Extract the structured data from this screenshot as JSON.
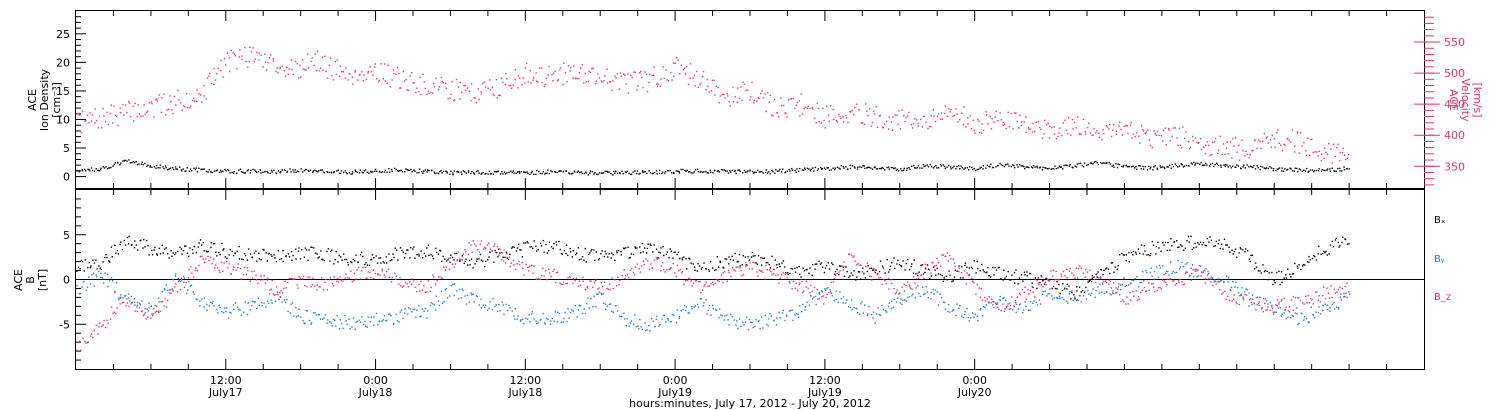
{
  "chart_data": [
    {
      "type": "scatter",
      "panel": "plasma",
      "ylabel_left": [
        "ACE",
        "Ion Density",
        "[cm⁻³]"
      ],
      "ylabel_right": [
        "ACE",
        "Velocity",
        "[km/s]"
      ],
      "ylim_left": [
        -2,
        29
      ],
      "yticks_left": [
        "0",
        "5",
        "10",
        "15",
        "20",
        "25"
      ],
      "ylim_right": [
        315,
        600
      ],
      "yticks_right": [
        "350",
        "400",
        "450",
        "500",
        "550"
      ],
      "series": [
        {
          "name": "Velocity",
          "axis": "right",
          "color": "#e8336a",
          "points": [
            [
              0,
              420
            ],
            [
              2,
              428
            ],
            [
              4,
              438
            ],
            [
              6,
              445
            ],
            [
              8,
              455
            ],
            [
              10,
              465
            ],
            [
              12,
              520
            ],
            [
              14,
              530
            ],
            [
              16,
              515
            ],
            [
              18,
              505
            ],
            [
              19,
              525
            ],
            [
              20,
              510
            ],
            [
              22,
              500
            ],
            [
              24,
              505
            ],
            [
              26,
              490
            ],
            [
              28,
              480
            ],
            [
              30,
              475
            ],
            [
              32,
              470
            ],
            [
              34,
              480
            ],
            [
              36,
              500
            ],
            [
              38,
              495
            ],
            [
              40,
              505
            ],
            [
              42,
              495
            ],
            [
              44,
              485
            ],
            [
              46,
              490
            ],
            [
              48,
              510
            ],
            [
              50,
              490
            ],
            [
              52,
              465
            ],
            [
              54,
              470
            ],
            [
              56,
              445
            ],
            [
              58,
              450
            ],
            [
              60,
              430
            ],
            [
              62,
              440
            ],
            [
              64,
              430
            ],
            [
              66,
              425
            ],
            [
              68,
              418
            ],
            [
              70,
              440
            ],
            [
              72,
              420
            ],
            [
              74,
              425
            ],
            [
              76,
              420
            ],
            [
              78,
              410
            ],
            [
              80,
              418
            ],
            [
              82,
              408
            ],
            [
              84,
              412
            ],
            [
              86,
              398
            ],
            [
              88,
              400
            ],
            [
              90,
              388
            ],
            [
              92,
              380
            ],
            [
              94,
              378
            ],
            [
              96,
              395
            ],
            [
              98,
              390
            ],
            [
              100,
              375
            ],
            [
              102,
              365
            ]
          ]
        },
        {
          "name": "Ion Density",
          "axis": "left",
          "color": "#000000",
          "points": [
            [
              0,
              1.2
            ],
            [
              2,
              1.5
            ],
            [
              4,
              2.8
            ],
            [
              6,
              2.0
            ],
            [
              8,
              1.5
            ],
            [
              10,
              1.2
            ],
            [
              12,
              1.0
            ],
            [
              14,
              1.1
            ],
            [
              16,
              1.0
            ],
            [
              18,
              1.2
            ],
            [
              20,
              1.0
            ],
            [
              22,
              0.9
            ],
            [
              24,
              1.1
            ],
            [
              26,
              1.3
            ],
            [
              28,
              1.0
            ],
            [
              30,
              0.8
            ],
            [
              32,
              0.8
            ],
            [
              34,
              0.9
            ],
            [
              36,
              0.8
            ],
            [
              38,
              0.9
            ],
            [
              40,
              0.8
            ],
            [
              42,
              0.7
            ],
            [
              44,
              0.8
            ],
            [
              46,
              0.9
            ],
            [
              48,
              1.0
            ],
            [
              50,
              1.1
            ],
            [
              52,
              1.0
            ],
            [
              54,
              0.9
            ],
            [
              56,
              1.0
            ],
            [
              58,
              1.3
            ],
            [
              60,
              1.5
            ],
            [
              62,
              1.8
            ],
            [
              64,
              1.6
            ],
            [
              66,
              1.4
            ],
            [
              68,
              2.0
            ],
            [
              70,
              1.8
            ],
            [
              72,
              1.5
            ],
            [
              74,
              2.2
            ],
            [
              76,
              1.8
            ],
            [
              78,
              1.6
            ],
            [
              80,
              2.0
            ],
            [
              82,
              2.5
            ],
            [
              84,
              1.8
            ],
            [
              86,
              1.6
            ],
            [
              88,
              2.0
            ],
            [
              90,
              2.4
            ],
            [
              92,
              2.0
            ],
            [
              94,
              1.8
            ],
            [
              96,
              1.5
            ],
            [
              98,
              1.2
            ],
            [
              100,
              1.3
            ],
            [
              102,
              1.5
            ]
          ]
        }
      ]
    },
    {
      "type": "scatter",
      "panel": "magnetic",
      "ylabel_left": [
        "ACE",
        "B",
        "[nT]"
      ],
      "ylim_left": [
        -10,
        10
      ],
      "yticks_left": [
        "-5",
        "0",
        "5"
      ],
      "zero_line": true,
      "legend": [
        "Bₓ",
        "Bᵧ",
        "B_z"
      ],
      "series": [
        {
          "name": "Bₓ",
          "color": "#000000",
          "points": [
            [
              0,
              1.5
            ],
            [
              2,
              2.0
            ],
            [
              4,
              4.5
            ],
            [
              6,
              3.5
            ],
            [
              8,
              3.0
            ],
            [
              10,
              3.8
            ],
            [
              12,
              3.2
            ],
            [
              14,
              2.8
            ],
            [
              16,
              2.5
            ],
            [
              18,
              3.0
            ],
            [
              20,
              2.8
            ],
            [
              22,
              2.2
            ],
            [
              24,
              2.5
            ],
            [
              26,
              3.0
            ],
            [
              28,
              3.2
            ],
            [
              30,
              2.6
            ],
            [
              32,
              2.0
            ],
            [
              34,
              2.8
            ],
            [
              36,
              3.5
            ],
            [
              38,
              3.8
            ],
            [
              40,
              3.0
            ],
            [
              42,
              2.5
            ],
            [
              44,
              3.2
            ],
            [
              46,
              3.6
            ],
            [
              48,
              2.5
            ],
            [
              50,
              1.5
            ],
            [
              52,
              2.0
            ],
            [
              54,
              2.5
            ],
            [
              56,
              1.8
            ],
            [
              58,
              1.0
            ],
            [
              60,
              1.5
            ],
            [
              62,
              0.5
            ],
            [
              64,
              1.2
            ],
            [
              66,
              2.0
            ],
            [
              68,
              1.0
            ],
            [
              70,
              0.5
            ],
            [
              72,
              1.5
            ],
            [
              74,
              0.8
            ],
            [
              76,
              0.2
            ],
            [
              78,
              -0.5
            ],
            [
              80,
              -1.5
            ],
            [
              82,
              0.5
            ],
            [
              84,
              2.5
            ],
            [
              86,
              3.5
            ],
            [
              88,
              4.0
            ],
            [
              90,
              4.2
            ],
            [
              92,
              3.8
            ],
            [
              94,
              2.5
            ],
            [
              96,
              0.0
            ],
            [
              98,
              1.5
            ],
            [
              100,
              3.5
            ],
            [
              102,
              4.5
            ]
          ]
        },
        {
          "name": "Bᵧ",
          "color": "#1a7fd6",
          "points": [
            [
              0,
              -1.0
            ],
            [
              2,
              0.5
            ],
            [
              4,
              -2.0
            ],
            [
              6,
              -3.5
            ],
            [
              8,
              0.5
            ],
            [
              10,
              -2.5
            ],
            [
              12,
              -3.5
            ],
            [
              14,
              -3.0
            ],
            [
              16,
              -2.0
            ],
            [
              18,
              -4.0
            ],
            [
              20,
              -4.5
            ],
            [
              22,
              -4.8
            ],
            [
              24,
              -4.5
            ],
            [
              26,
              -4.0
            ],
            [
              28,
              -3.5
            ],
            [
              30,
              -1.0
            ],
            [
              32,
              -2.5
            ],
            [
              34,
              -3.0
            ],
            [
              36,
              -4.2
            ],
            [
              38,
              -4.5
            ],
            [
              40,
              -3.5
            ],
            [
              42,
              -2.0
            ],
            [
              44,
              -4.5
            ],
            [
              46,
              -5.0
            ],
            [
              48,
              -4.0
            ],
            [
              50,
              -2.5
            ],
            [
              52,
              -4.5
            ],
            [
              54,
              -5.0
            ],
            [
              56,
              -4.2
            ],
            [
              58,
              -3.5
            ],
            [
              60,
              -1.0
            ],
            [
              62,
              -2.5
            ],
            [
              64,
              -4.0
            ],
            [
              66,
              -2.0
            ],
            [
              68,
              -1.0
            ],
            [
              70,
              -3.0
            ],
            [
              72,
              -4.0
            ],
            [
              74,
              -2.5
            ],
            [
              76,
              -3.0
            ],
            [
              78,
              -1.5
            ],
            [
              80,
              -2.0
            ],
            [
              82,
              -1.0
            ],
            [
              84,
              -0.5
            ],
            [
              86,
              0.5
            ],
            [
              88,
              1.5
            ],
            [
              90,
              1.0
            ],
            [
              92,
              0.0
            ],
            [
              94,
              -2.0
            ],
            [
              96,
              -3.5
            ],
            [
              98,
              -4.5
            ],
            [
              100,
              -3.0
            ],
            [
              102,
              -2.0
            ]
          ]
        },
        {
          "name": "B_z",
          "color": "#e8336a",
          "points": [
            [
              0,
              -7.5
            ],
            [
              2,
              -5.0
            ],
            [
              4,
              -2.0
            ],
            [
              6,
              -4.0
            ],
            [
              8,
              -1.0
            ],
            [
              10,
              2.0
            ],
            [
              12,
              1.5
            ],
            [
              14,
              0.5
            ],
            [
              16,
              -1.0
            ],
            [
              18,
              0.0
            ],
            [
              20,
              -0.5
            ],
            [
              22,
              0.5
            ],
            [
              24,
              1.0
            ],
            [
              26,
              0.0
            ],
            [
              28,
              -1.0
            ],
            [
              30,
              2.0
            ],
            [
              32,
              4.0
            ],
            [
              34,
              3.0
            ],
            [
              36,
              1.0
            ],
            [
              38,
              0.5
            ],
            [
              40,
              0.0
            ],
            [
              42,
              -1.0
            ],
            [
              44,
              0.5
            ],
            [
              46,
              2.0
            ],
            [
              48,
              1.0
            ],
            [
              50,
              -1.0
            ],
            [
              52,
              0.5
            ],
            [
              54,
              1.5
            ],
            [
              56,
              0.5
            ],
            [
              58,
              -0.5
            ],
            [
              60,
              -2.0
            ],
            [
              62,
              2.5
            ],
            [
              64,
              0.5
            ],
            [
              66,
              -1.5
            ],
            [
              68,
              1.0
            ],
            [
              70,
              2.5
            ],
            [
              72,
              -1.0
            ],
            [
              74,
              -3.0
            ],
            [
              76,
              -1.5
            ],
            [
              78,
              0.5
            ],
            [
              80,
              1.0
            ],
            [
              82,
              0.0
            ],
            [
              84,
              -2.0
            ],
            [
              86,
              -1.0
            ],
            [
              88,
              -0.5
            ],
            [
              90,
              1.0
            ],
            [
              92,
              -1.5
            ],
            [
              94,
              -2.5
            ],
            [
              96,
              -3.0
            ],
            [
              98,
              -2.5
            ],
            [
              100,
              -1.5
            ],
            [
              102,
              -1.0
            ]
          ]
        }
      ]
    }
  ],
  "x_axis": {
    "xlim": [
      0,
      108
    ],
    "ticks": [
      {
        "h": 12,
        "top": "12:00",
        "bottom": "July17"
      },
      {
        "h": 24,
        "top": "0:00",
        "bottom": "July18"
      },
      {
        "h": 36,
        "top": "12:00",
        "bottom": "July18"
      },
      {
        "h": 48,
        "top": "0:00",
        "bottom": "July19"
      },
      {
        "h": 60,
        "top": "12:00",
        "bottom": "July19"
      },
      {
        "h": 72,
        "top": "0:00",
        "bottom": "July20"
      }
    ],
    "title": "hours:minutes, July 17, 2012 - July 20, 2012"
  }
}
